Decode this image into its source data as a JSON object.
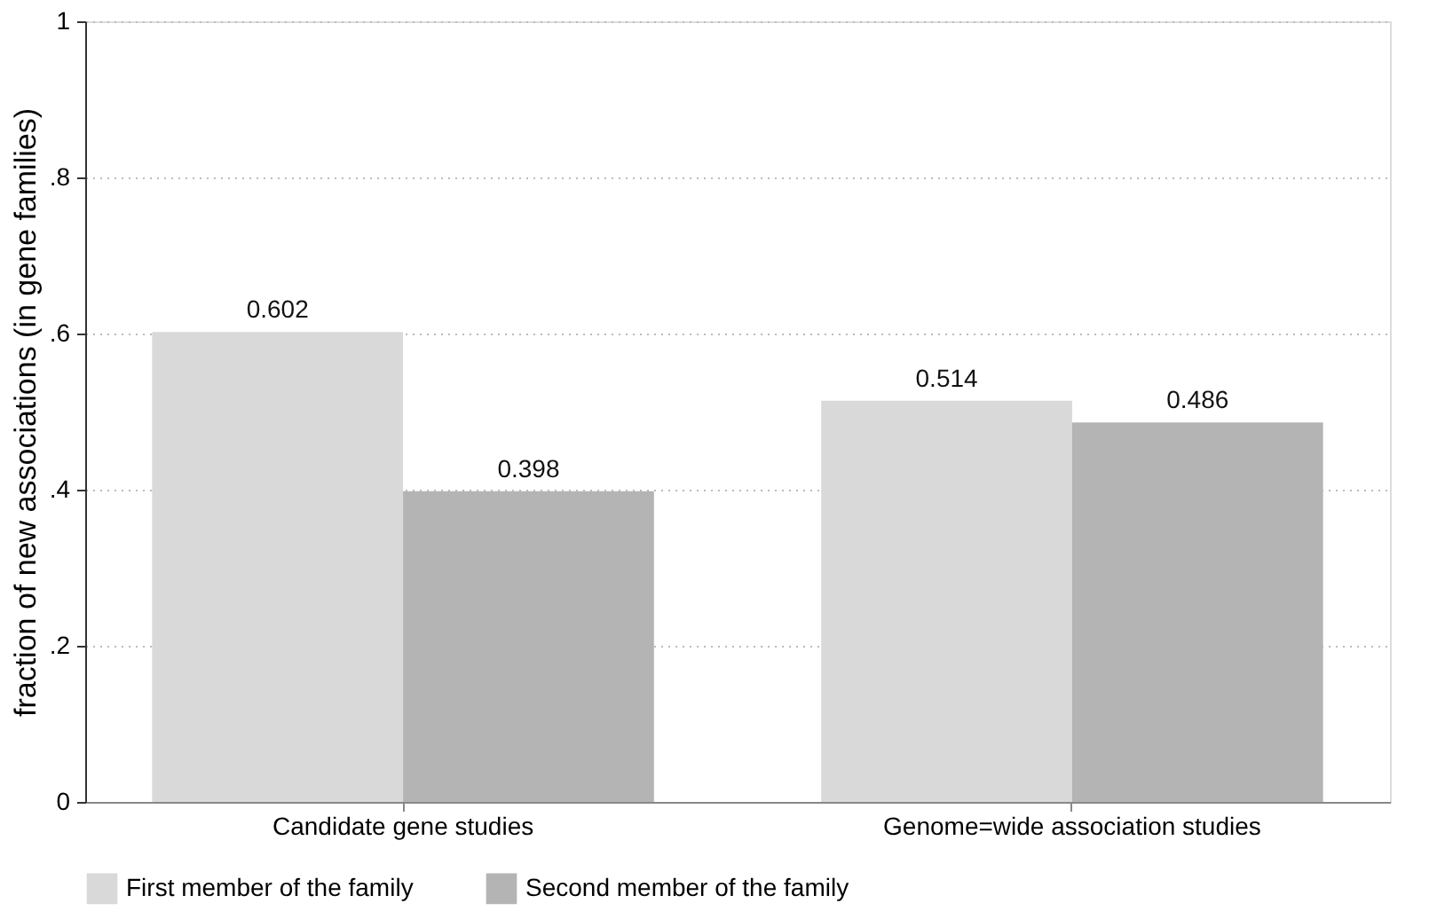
{
  "chart_data": {
    "type": "bar",
    "ylabel": "fraction of new associations (in gene families)",
    "categories": [
      "Candidate gene studies",
      "Genome=wide association studies"
    ],
    "series": [
      {
        "name": "First member of the family",
        "color": "#d9d9d9",
        "values": [
          0.602,
          0.514
        ]
      },
      {
        "name": "Second member of the family",
        "color": "#b4b4b4",
        "values": [
          0.398,
          0.486
        ]
      }
    ],
    "ylim": [
      0,
      1
    ],
    "yticks": [
      0,
      {
        "value": 0.2,
        "label": ".2"
      },
      {
        "value": 0.4,
        "label": ".4"
      },
      {
        "value": 0.6,
        "label": ".6"
      },
      {
        "value": 0.8,
        "label": ".8"
      },
      1
    ],
    "grid": "y",
    "legend": "bottom",
    "data_labels": true
  }
}
